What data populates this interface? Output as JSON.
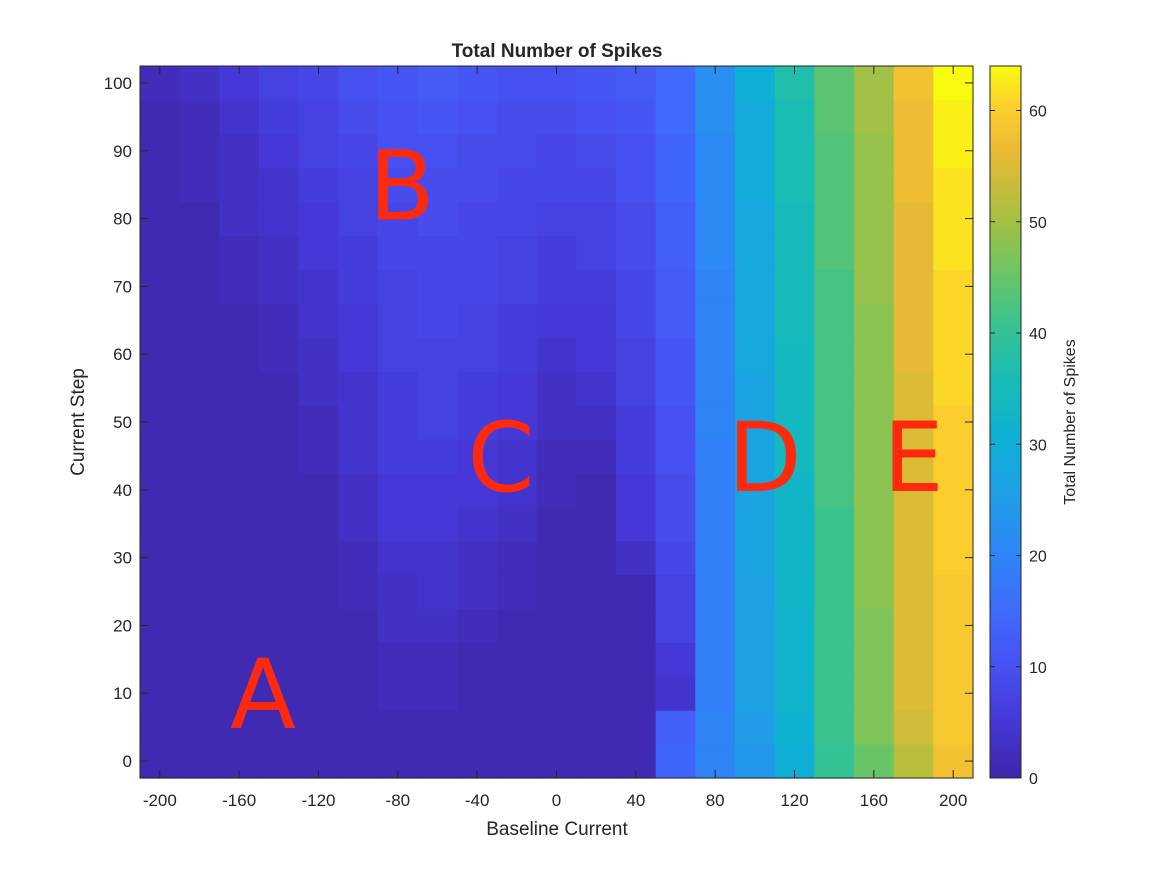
{
  "chart_data": {
    "type": "heatmap",
    "title": "Total Number of Spikes",
    "xlabel": "Baseline Current",
    "ylabel": "Current Step",
    "x_ticks": [
      "-200",
      "-160",
      "-120",
      "-80",
      "-40",
      "0",
      "40",
      "80",
      "120",
      "160",
      "200"
    ],
    "y_ticks": [
      "0",
      "10",
      "20",
      "30",
      "40",
      "50",
      "60",
      "70",
      "80",
      "90",
      "100"
    ],
    "xlim": [
      -210,
      210
    ],
    "ylim": [
      -2.5,
      102.5
    ],
    "x": [
      -200,
      -180,
      -160,
      -140,
      -120,
      -100,
      -80,
      -60,
      -40,
      -20,
      0,
      20,
      40,
      60,
      80,
      100,
      120,
      140,
      160,
      180,
      200
    ],
    "y": [
      0,
      5,
      10,
      15,
      20,
      25,
      30,
      35,
      40,
      45,
      50,
      55,
      60,
      65,
      70,
      75,
      80,
      85,
      90,
      95,
      100
    ],
    "z": [
      [
        1,
        1,
        1,
        1,
        1,
        1,
        1,
        1,
        1,
        1,
        1,
        1,
        1,
        14,
        20,
        24,
        30,
        40,
        45,
        52,
        58
      ],
      [
        1,
        1,
        1,
        1,
        1,
        1,
        1,
        1,
        1,
        1,
        1,
        1,
        1,
        13,
        20,
        25,
        31,
        41,
        47,
        54,
        59
      ],
      [
        1,
        1,
        1,
        1,
        1,
        1,
        2,
        2,
        1,
        1,
        1,
        1,
        1,
        4,
        19,
        26,
        32,
        41,
        47,
        55,
        59
      ],
      [
        1,
        1,
        1,
        1,
        1,
        1,
        2,
        2,
        1,
        1,
        1,
        1,
        1,
        5,
        19,
        26,
        32,
        41,
        47,
        55,
        59
      ],
      [
        1,
        1,
        1,
        1,
        1,
        1,
        3,
        3,
        2,
        1,
        1,
        1,
        1,
        7,
        19,
        26,
        32,
        41,
        47,
        55,
        59
      ],
      [
        1,
        1,
        1,
        1,
        1,
        2,
        3,
        4,
        3,
        2,
        1,
        1,
        1,
        7,
        19,
        26,
        33,
        41,
        48,
        55,
        59
      ],
      [
        1,
        1,
        1,
        1,
        1,
        2,
        4,
        4,
        3,
        2,
        1,
        1,
        3,
        8,
        19,
        27,
        33,
        41,
        48,
        55,
        60
      ],
      [
        1,
        1,
        1,
        1,
        1,
        3,
        5,
        5,
        4,
        3,
        1,
        1,
        5,
        9,
        19,
        27,
        33,
        41,
        48,
        55,
        60
      ],
      [
        1,
        1,
        1,
        1,
        1,
        3,
        5,
        5,
        5,
        4,
        2,
        1,
        5,
        9,
        19,
        27,
        33,
        42,
        48,
        55,
        60
      ],
      [
        1,
        1,
        1,
        1,
        2,
        4,
        6,
        6,
        5,
        4,
        2,
        2,
        6,
        10,
        19,
        27,
        34,
        42,
        48,
        55,
        60
      ],
      [
        1,
        1,
        1,
        1,
        2,
        4,
        6,
        7,
        6,
        5,
        3,
        3,
        6,
        10,
        20,
        27,
        34,
        42,
        48,
        55,
        60
      ],
      [
        1,
        1,
        1,
        1,
        3,
        4,
        6,
        7,
        6,
        5,
        3,
        4,
        7,
        11,
        20,
        27,
        34,
        42,
        48,
        55,
        61
      ],
      [
        1,
        1,
        1,
        2,
        3,
        5,
        7,
        7,
        7,
        6,
        4,
        5,
        7,
        11,
        20,
        28,
        34,
        42,
        48,
        56,
        61
      ],
      [
        1,
        1,
        1,
        2,
        4,
        5,
        7,
        8,
        7,
        6,
        5,
        5,
        8,
        12,
        20,
        28,
        35,
        42,
        48,
        56,
        61
      ],
      [
        1,
        1,
        2,
        3,
        4,
        6,
        7,
        8,
        8,
        7,
        6,
        6,
        8,
        12,
        20,
        28,
        35,
        42,
        49,
        56,
        61
      ],
      [
        1,
        1,
        2,
        3,
        5,
        6,
        8,
        8,
        8,
        7,
        6,
        7,
        9,
        13,
        21,
        28,
        35,
        43,
        49,
        56,
        62
      ],
      [
        1,
        1,
        3,
        4,
        5,
        7,
        8,
        9,
        8,
        8,
        7,
        7,
        9,
        13,
        21,
        28,
        35,
        43,
        49,
        56,
        62
      ],
      [
        1,
        2,
        3,
        4,
        6,
        7,
        9,
        9,
        9,
        8,
        8,
        8,
        10,
        14,
        21,
        29,
        36,
        43,
        49,
        57,
        62
      ],
      [
        1,
        2,
        3,
        5,
        7,
        8,
        10,
        10,
        9,
        9,
        8,
        9,
        10,
        14,
        21,
        29,
        36,
        43,
        49,
        57,
        63
      ],
      [
        1,
        2,
        4,
        6,
        7,
        9,
        10,
        11,
        10,
        9,
        9,
        10,
        11,
        15,
        22,
        29,
        36,
        44,
        50,
        57,
        63
      ],
      [
        2,
        3,
        5,
        7,
        8,
        10,
        11,
        12,
        11,
        10,
        10,
        11,
        12,
        15,
        22,
        30,
        37,
        44,
        50,
        58,
        64
      ]
    ],
    "colorbar": {
      "label": "Total Number of Spikes",
      "range": [
        0,
        64
      ],
      "ticks": [
        "0",
        "10",
        "20",
        "30",
        "40",
        "50",
        "60"
      ],
      "colormap": "parula"
    },
    "annotations": [
      "A",
      "B",
      "C",
      "D",
      "E"
    ],
    "annotation_color": "#ff2a0e",
    "grid": false
  }
}
